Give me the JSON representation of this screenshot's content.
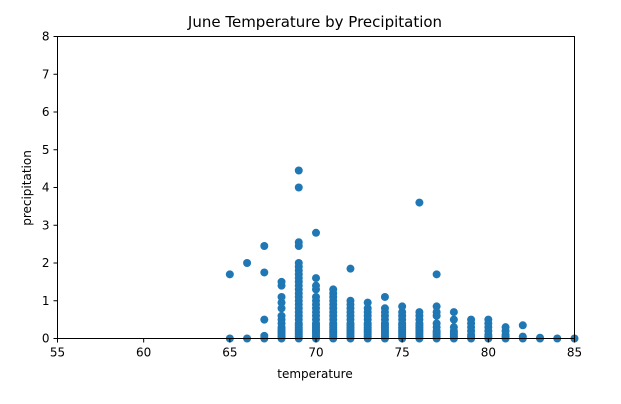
{
  "chart_data": {
    "type": "scatter",
    "title": "June Temperature by Precipitation",
    "xlabel": "temperature",
    "ylabel": "precipitation",
    "xlim": [
      55,
      85
    ],
    "ylim": [
      0,
      8
    ],
    "xticks": [
      55,
      60,
      65,
      70,
      75,
      80,
      85
    ],
    "yticks": [
      0,
      1,
      2,
      3,
      4,
      5,
      6,
      7,
      8
    ],
    "grid": false,
    "color": "#1f77b4",
    "series": [
      {
        "points": [
          [
            65,
            0
          ],
          [
            65,
            1.7
          ],
          [
            66,
            0
          ],
          [
            66,
            2.0
          ],
          [
            67,
            0
          ],
          [
            67,
            0.07
          ],
          [
            67,
            0.5
          ],
          [
            67,
            1.75
          ],
          [
            67,
            2.45
          ],
          [
            68,
            0
          ],
          [
            68,
            0.05
          ],
          [
            68,
            0.1
          ],
          [
            68,
            0.15
          ],
          [
            68,
            0.2
          ],
          [
            68,
            0.25
          ],
          [
            68,
            0.3
          ],
          [
            68,
            0.4
          ],
          [
            68,
            0.5
          ],
          [
            68,
            0.6
          ],
          [
            68,
            0.8
          ],
          [
            68,
            0.95
          ],
          [
            68,
            1.1
          ],
          [
            68,
            1.4
          ],
          [
            68,
            1.5
          ],
          [
            69,
            0
          ],
          [
            69,
            0.05
          ],
          [
            69,
            0.1
          ],
          [
            69,
            0.15
          ],
          [
            69,
            0.2
          ],
          [
            69,
            0.25
          ],
          [
            69,
            0.3
          ],
          [
            69,
            0.35
          ],
          [
            69,
            0.4
          ],
          [
            69,
            0.5
          ],
          [
            69,
            0.6
          ],
          [
            69,
            0.7
          ],
          [
            69,
            0.8
          ],
          [
            69,
            0.9
          ],
          [
            69,
            1.0
          ],
          [
            69,
            1.1
          ],
          [
            69,
            1.2
          ],
          [
            69,
            1.3
          ],
          [
            69,
            1.4
          ],
          [
            69,
            1.5
          ],
          [
            69,
            1.6
          ],
          [
            69,
            1.7
          ],
          [
            69,
            1.8
          ],
          [
            69,
            1.9
          ],
          [
            69,
            2.0
          ],
          [
            69,
            2.45
          ],
          [
            69,
            2.55
          ],
          [
            69,
            4.0
          ],
          [
            69,
            4.45
          ],
          [
            70,
            0
          ],
          [
            70,
            0.05
          ],
          [
            70,
            0.1
          ],
          [
            70,
            0.15
          ],
          [
            70,
            0.2
          ],
          [
            70,
            0.25
          ],
          [
            70,
            0.3
          ],
          [
            70,
            0.35
          ],
          [
            70,
            0.4
          ],
          [
            70,
            0.5
          ],
          [
            70,
            0.6
          ],
          [
            70,
            0.7
          ],
          [
            70,
            0.8
          ],
          [
            70,
            0.9
          ],
          [
            70,
            1.0
          ],
          [
            70,
            1.1
          ],
          [
            70,
            1.3
          ],
          [
            70,
            1.4
          ],
          [
            70,
            1.6
          ],
          [
            70,
            2.8
          ],
          [
            71,
            0
          ],
          [
            71,
            0.05
          ],
          [
            71,
            0.1
          ],
          [
            71,
            0.15
          ],
          [
            71,
            0.2
          ],
          [
            71,
            0.25
          ],
          [
            71,
            0.3
          ],
          [
            71,
            0.35
          ],
          [
            71,
            0.4
          ],
          [
            71,
            0.5
          ],
          [
            71,
            0.6
          ],
          [
            71,
            0.7
          ],
          [
            71,
            0.8
          ],
          [
            71,
            0.9
          ],
          [
            71,
            1.0
          ],
          [
            71,
            1.1
          ],
          [
            71,
            1.2
          ],
          [
            71,
            1.3
          ],
          [
            72,
            0
          ],
          [
            72,
            0.05
          ],
          [
            72,
            0.1
          ],
          [
            72,
            0.15
          ],
          [
            72,
            0.2
          ],
          [
            72,
            0.25
          ],
          [
            72,
            0.3
          ],
          [
            72,
            0.35
          ],
          [
            72,
            0.4
          ],
          [
            72,
            0.5
          ],
          [
            72,
            0.6
          ],
          [
            72,
            0.7
          ],
          [
            72,
            0.8
          ],
          [
            72,
            0.9
          ],
          [
            72,
            1.0
          ],
          [
            72,
            1.85
          ],
          [
            73,
            0
          ],
          [
            73,
            0.05
          ],
          [
            73,
            0.1
          ],
          [
            73,
            0.15
          ],
          [
            73,
            0.2
          ],
          [
            73,
            0.25
          ],
          [
            73,
            0.3
          ],
          [
            73,
            0.35
          ],
          [
            73,
            0.4
          ],
          [
            73,
            0.5
          ],
          [
            73,
            0.6
          ],
          [
            73,
            0.7
          ],
          [
            73,
            0.8
          ],
          [
            73,
            0.95
          ],
          [
            74,
            0
          ],
          [
            74,
            0.05
          ],
          [
            74,
            0.1
          ],
          [
            74,
            0.15
          ],
          [
            74,
            0.2
          ],
          [
            74,
            0.25
          ],
          [
            74,
            0.3
          ],
          [
            74,
            0.35
          ],
          [
            74,
            0.4
          ],
          [
            74,
            0.5
          ],
          [
            74,
            0.6
          ],
          [
            74,
            0.7
          ],
          [
            74,
            0.8
          ],
          [
            74,
            1.1
          ],
          [
            75,
            0
          ],
          [
            75,
            0.05
          ],
          [
            75,
            0.1
          ],
          [
            75,
            0.15
          ],
          [
            75,
            0.2
          ],
          [
            75,
            0.25
          ],
          [
            75,
            0.3
          ],
          [
            75,
            0.35
          ],
          [
            75,
            0.4
          ],
          [
            75,
            0.5
          ],
          [
            75,
            0.6
          ],
          [
            75,
            0.7
          ],
          [
            75,
            0.85
          ],
          [
            76,
            0
          ],
          [
            76,
            0.05
          ],
          [
            76,
            0.1
          ],
          [
            76,
            0.15
          ],
          [
            76,
            0.2
          ],
          [
            76,
            0.25
          ],
          [
            76,
            0.3
          ],
          [
            76,
            0.35
          ],
          [
            76,
            0.4
          ],
          [
            76,
            0.5
          ],
          [
            76,
            0.6
          ],
          [
            76,
            0.7
          ],
          [
            76,
            3.6
          ],
          [
            77,
            0
          ],
          [
            77,
            0.05
          ],
          [
            77,
            0.1
          ],
          [
            77,
            0.15
          ],
          [
            77,
            0.2
          ],
          [
            77,
            0.3
          ],
          [
            77,
            0.4
          ],
          [
            77,
            0.6
          ],
          [
            77,
            0.7
          ],
          [
            77,
            0.85
          ],
          [
            77,
            1.7
          ],
          [
            78,
            0
          ],
          [
            78,
            0.05
          ],
          [
            78,
            0.1
          ],
          [
            78,
            0.15
          ],
          [
            78,
            0.2
          ],
          [
            78,
            0.3
          ],
          [
            78,
            0.5
          ],
          [
            78,
            0.7
          ],
          [
            79,
            0
          ],
          [
            79,
            0.05
          ],
          [
            79,
            0.1
          ],
          [
            79,
            0.2
          ],
          [
            79,
            0.3
          ],
          [
            79,
            0.4
          ],
          [
            79,
            0.5
          ],
          [
            80,
            0
          ],
          [
            80,
            0.05
          ],
          [
            80,
            0.1
          ],
          [
            80,
            0.2
          ],
          [
            80,
            0.3
          ],
          [
            80,
            0.4
          ],
          [
            80,
            0.5
          ],
          [
            81,
            0
          ],
          [
            81,
            0.05
          ],
          [
            81,
            0.1
          ],
          [
            81,
            0.2
          ],
          [
            81,
            0.3
          ],
          [
            82,
            0
          ],
          [
            82,
            0.05
          ],
          [
            82,
            0.35
          ],
          [
            83,
            0
          ],
          [
            83,
            0.02
          ],
          [
            84,
            0
          ],
          [
            85,
            0
          ]
        ]
      }
    ]
  }
}
